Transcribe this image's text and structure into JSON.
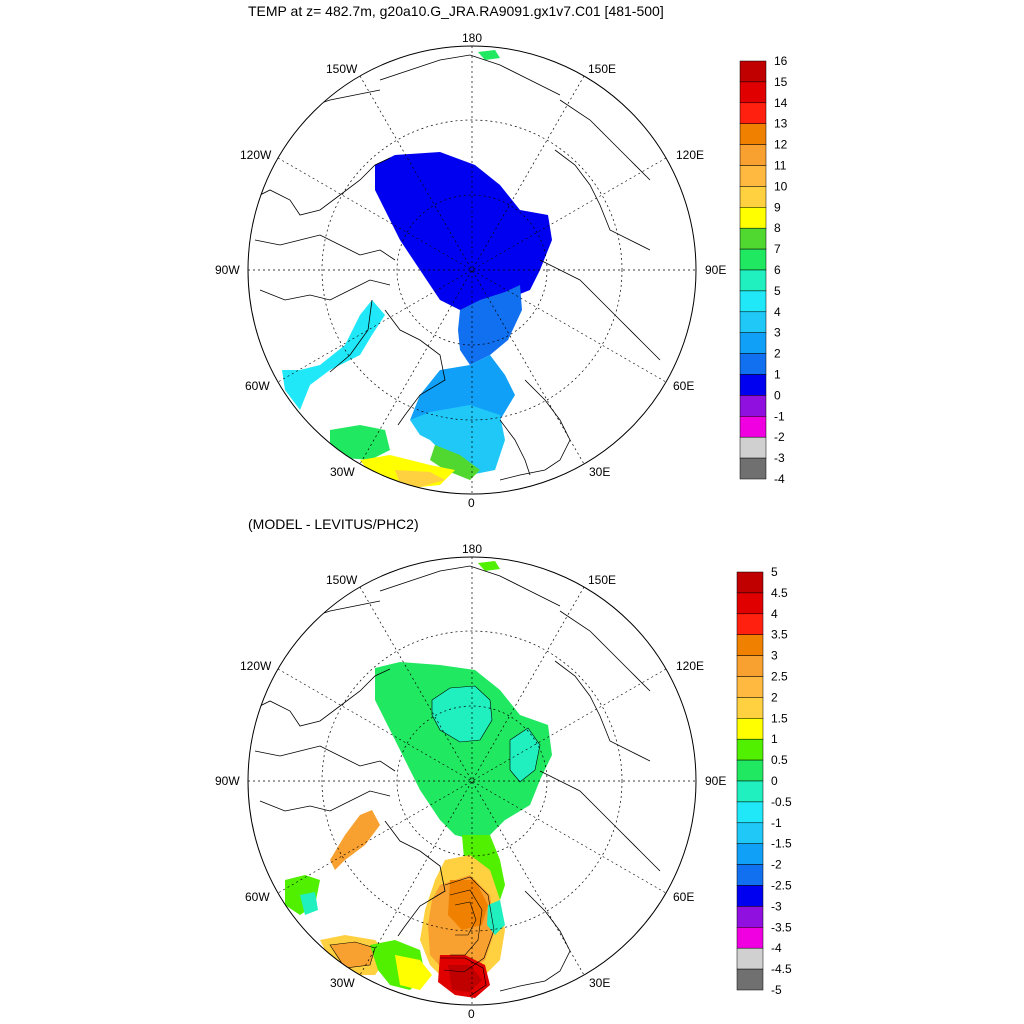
{
  "top": {
    "title": "TEMP at z= 482.7m, g20a10.G_JRA.RA9091.gx1v7.C01 [481-500]",
    "colorbar": {
      "labels": [
        "16",
        "15",
        "14",
        "13",
        "12",
        "11",
        "10",
        "9",
        "8",
        "7",
        "6",
        "5",
        "4",
        "3",
        "2",
        "1",
        "0",
        "-1",
        "-2",
        "-3",
        "-4"
      ],
      "colors": [
        "#c00000",
        "#e00000",
        "#ff2010",
        "#f08000",
        "#f8a030",
        "#ffb840",
        "#ffd040",
        "#ffff00",
        "#50d830",
        "#20e860",
        "#20f0c0",
        "#20e8f8",
        "#20c8f8",
        "#10a0f8",
        "#1070f0",
        "#0000f0",
        "#9010e0",
        "#f000e0",
        "#d0d0d0",
        "#707070"
      ]
    }
  },
  "bottom": {
    "title": "(MODEL - LEVITUS/PHC2)",
    "colorbar": {
      "labels": [
        "5",
        "4.5",
        "4",
        "3.5",
        "3",
        "2.5",
        "2",
        "1.5",
        "1",
        "0.5",
        "0",
        "-0.5",
        "-1",
        "-1.5",
        "-2",
        "-2.5",
        "-3",
        "-3.5",
        "-4",
        "-4.5",
        "-5"
      ],
      "colors": [
        "#c00000",
        "#e00000",
        "#ff2010",
        "#f08000",
        "#f8a030",
        "#ffb840",
        "#ffd040",
        "#ffff00",
        "#50f000",
        "#20e860",
        "#20f0c0",
        "#20e8f8",
        "#20c8f8",
        "#10a0f8",
        "#1070f0",
        "#0000f0",
        "#9010e0",
        "#f000e0",
        "#d0d0d0",
        "#707070"
      ]
    }
  },
  "map_labels": {
    "lon_180": "180",
    "lon_150w": "150W",
    "lon_150e": "150E",
    "lon_120w": "120W",
    "lon_120e": "120E",
    "lon_90w": "90W",
    "lon_90e": "90E",
    "lon_60w": "60W",
    "lon_60e": "60E",
    "lon_30w": "30W",
    "lon_30e": "30E",
    "lon_0": "0"
  },
  "colors": {
    "land_line": "#000000",
    "background": "#ffffff"
  }
}
